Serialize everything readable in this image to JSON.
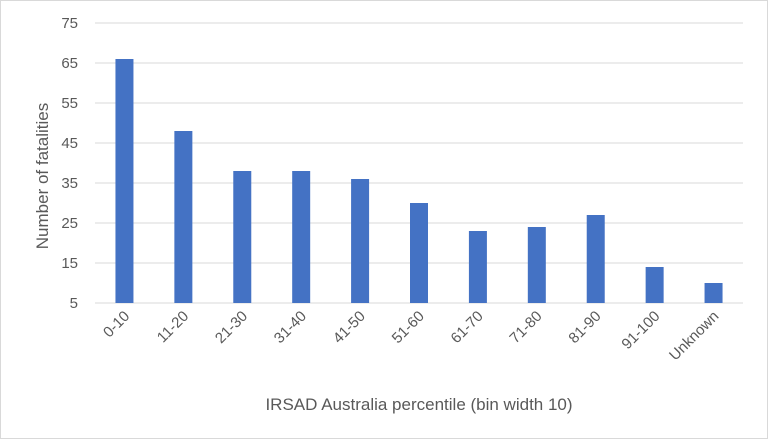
{
  "chart_data": {
    "type": "bar",
    "title": "",
    "xlabel": "IRSAD Australia percentile (bin width 10)",
    "ylabel": "Number of fatalities",
    "categories": [
      "0-10",
      "11-20",
      "21-30",
      "31-40",
      "41-50",
      "51-60",
      "61-70",
      "71-80",
      "81-90",
      "91-100",
      "Unknown"
    ],
    "values": [
      66,
      48,
      38,
      38,
      36,
      30,
      23,
      24,
      27,
      14,
      10
    ],
    "ylim": [
      5,
      75
    ],
    "yticks": [
      5,
      15,
      25,
      35,
      45,
      55,
      65,
      75
    ],
    "grid": true,
    "bar_color": "#4472c4",
    "legend": "none"
  }
}
